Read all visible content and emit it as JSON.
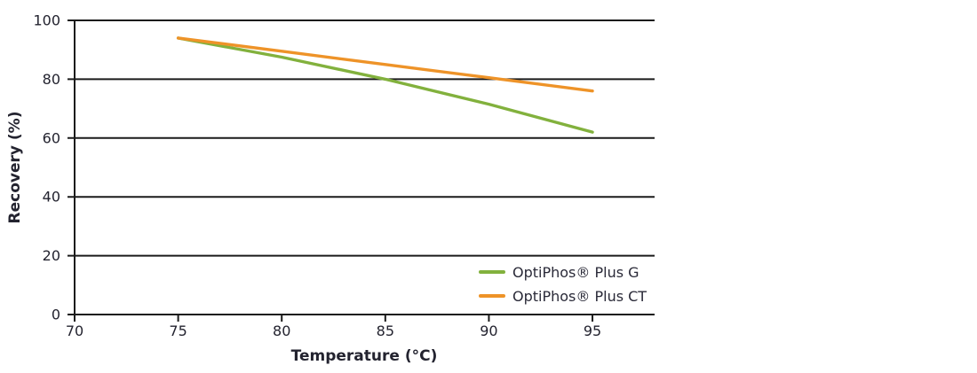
{
  "page": {
    "background": "#ffffff"
  },
  "chart_data": {
    "type": "line",
    "title": "",
    "xlabel": "Temperature (°C)",
    "ylabel": "Recovery (%)",
    "x": [
      75,
      80,
      85,
      90,
      95
    ],
    "series": [
      {
        "name": "OptiPhos® Plus G",
        "color": "#82B13D",
        "values": [
          94,
          87.5,
          80,
          71.5,
          62
        ]
      },
      {
        "name": "OptiPhos® Plus CT",
        "color": "#EE9328",
        "values": [
          94,
          89.5,
          85,
          80.5,
          76
        ]
      }
    ],
    "xlim": [
      70,
      98
    ],
    "ylim": [
      0,
      100
    ],
    "xticks": [
      70,
      75,
      80,
      85,
      90,
      95
    ],
    "yticks": [
      0,
      20,
      40,
      60,
      80,
      100
    ],
    "grid": "horizontal-only",
    "legend_position": "inside-bottom-right",
    "axis_color": "#1a1a1a",
    "text_color": "#23232f",
    "line_width": 3.4
  }
}
